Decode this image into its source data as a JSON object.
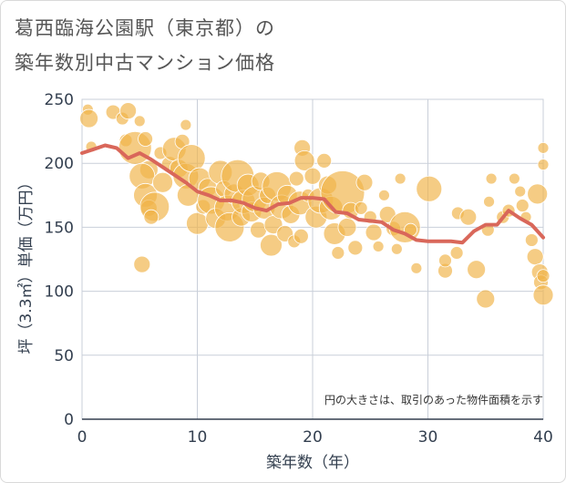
{
  "title": {
    "line1": "葛西臨海公園駅（東京都）の",
    "line2": "築年数別中古マンション価格"
  },
  "chart_data": {
    "type": "scatter",
    "xlabel": "築年数（年）",
    "ylabel": "坪（3.3㎡）単価（万円）",
    "xlim": [
      0,
      40
    ],
    "ylim": [
      0,
      250
    ],
    "x_ticks": [
      "0",
      "10",
      "20",
      "30",
      "40"
    ],
    "y_ticks": [
      "0",
      "50",
      "100",
      "150",
      "200",
      "250"
    ],
    "grid": true,
    "note": "円の大きさは、取引のあった物件面積を示す",
    "colors": {
      "bubble": "#f0b449",
      "line": "#d9675a",
      "grid": "#c9cfd9"
    },
    "bubbles": [
      {
        "x": 0.5,
        "y": 242,
        "s": 6
      },
      {
        "x": 0.6,
        "y": 235,
        "s": 10
      },
      {
        "x": 0.8,
        "y": 213,
        "s": 6
      },
      {
        "x": 2.7,
        "y": 240,
        "s": 8
      },
      {
        "x": 3.5,
        "y": 235,
        "s": 7
      },
      {
        "x": 4.0,
        "y": 241,
        "s": 9
      },
      {
        "x": 3.8,
        "y": 218,
        "s": 7
      },
      {
        "x": 4.6,
        "y": 212,
        "s": 18
      },
      {
        "x": 5.0,
        "y": 233,
        "s": 6
      },
      {
        "x": 5.5,
        "y": 219,
        "s": 8
      },
      {
        "x": 5.8,
        "y": 195,
        "s": 10
      },
      {
        "x": 5.2,
        "y": 190,
        "s": 14
      },
      {
        "x": 5.5,
        "y": 175,
        "s": 13
      },
      {
        "x": 5.8,
        "y": 165,
        "s": 9
      },
      {
        "x": 6.3,
        "y": 166,
        "s": 16
      },
      {
        "x": 6.0,
        "y": 158,
        "s": 8
      },
      {
        "x": 5.2,
        "y": 121,
        "s": 9
      },
      {
        "x": 6.8,
        "y": 208,
        "s": 7
      },
      {
        "x": 7.0,
        "y": 185,
        "s": 11
      },
      {
        "x": 7.6,
        "y": 199,
        "s": 9
      },
      {
        "x": 8.0,
        "y": 211,
        "s": 13
      },
      {
        "x": 8.4,
        "y": 196,
        "s": 10
      },
      {
        "x": 8.7,
        "y": 217,
        "s": 8
      },
      {
        "x": 9.0,
        "y": 230,
        "s": 6
      },
      {
        "x": 9.0,
        "y": 190,
        "s": 14
      },
      {
        "x": 9.2,
        "y": 175,
        "s": 12
      },
      {
        "x": 9.5,
        "y": 204,
        "s": 15
      },
      {
        "x": 10.2,
        "y": 188,
        "s": 12
      },
      {
        "x": 10.0,
        "y": 153,
        "s": 12
      },
      {
        "x": 10.5,
        "y": 166,
        "s": 8
      },
      {
        "x": 10.9,
        "y": 181,
        "s": 10
      },
      {
        "x": 11.2,
        "y": 171,
        "s": 15
      },
      {
        "x": 11.6,
        "y": 157,
        "s": 11
      },
      {
        "x": 12.0,
        "y": 193,
        "s": 13
      },
      {
        "x": 12.3,
        "y": 180,
        "s": 9
      },
      {
        "x": 12.6,
        "y": 165,
        "s": 14
      },
      {
        "x": 12.8,
        "y": 150,
        "s": 16
      },
      {
        "x": 13.2,
        "y": 176,
        "s": 11
      },
      {
        "x": 13.5,
        "y": 190,
        "s": 18
      },
      {
        "x": 13.8,
        "y": 158,
        "s": 10
      },
      {
        "x": 14.0,
        "y": 170,
        "s": 13
      },
      {
        "x": 14.4,
        "y": 183,
        "s": 12
      },
      {
        "x": 14.7,
        "y": 162,
        "s": 11
      },
      {
        "x": 15.0,
        "y": 172,
        "s": 14
      },
      {
        "x": 15.3,
        "y": 148,
        "s": 9
      },
      {
        "x": 15.5,
        "y": 186,
        "s": 10
      },
      {
        "x": 15.8,
        "y": 165,
        "s": 12
      },
      {
        "x": 16.1,
        "y": 175,
        "s": 9
      },
      {
        "x": 16.4,
        "y": 136,
        "s": 12
      },
      {
        "x": 16.6,
        "y": 152,
        "s": 10
      },
      {
        "x": 16.9,
        "y": 182,
        "s": 16
      },
      {
        "x": 17.3,
        "y": 166,
        "s": 13
      },
      {
        "x": 17.6,
        "y": 145,
        "s": 9
      },
      {
        "x": 17.8,
        "y": 175,
        "s": 11
      },
      {
        "x": 18.1,
        "y": 160,
        "s": 10
      },
      {
        "x": 18.4,
        "y": 139,
        "s": 7
      },
      {
        "x": 18.6,
        "y": 188,
        "s": 8
      },
      {
        "x": 18.9,
        "y": 169,
        "s": 13
      },
      {
        "x": 19.1,
        "y": 212,
        "s": 9
      },
      {
        "x": 19.3,
        "y": 202,
        "s": 11
      },
      {
        "x": 19.0,
        "y": 143,
        "s": 8
      },
      {
        "x": 19.6,
        "y": 175,
        "s": 7
      },
      {
        "x": 20.0,
        "y": 190,
        "s": 9
      },
      {
        "x": 20.3,
        "y": 158,
        "s": 12
      },
      {
        "x": 20.7,
        "y": 171,
        "s": 14
      },
      {
        "x": 21.0,
        "y": 202,
        "s": 8
      },
      {
        "x": 21.3,
        "y": 183,
        "s": 10
      },
      {
        "x": 21.6,
        "y": 165,
        "s": 13
      },
      {
        "x": 21.9,
        "y": 145,
        "s": 12
      },
      {
        "x": 22.2,
        "y": 130,
        "s": 7
      },
      {
        "x": 22.6,
        "y": 177,
        "s": 24
      },
      {
        "x": 23.0,
        "y": 150,
        "s": 10
      },
      {
        "x": 23.3,
        "y": 163,
        "s": 9
      },
      {
        "x": 23.7,
        "y": 134,
        "s": 8
      },
      {
        "x": 24.2,
        "y": 165,
        "s": 7
      },
      {
        "x": 24.5,
        "y": 185,
        "s": 9
      },
      {
        "x": 25.0,
        "y": 158,
        "s": 7
      },
      {
        "x": 25.3,
        "y": 146,
        "s": 9
      },
      {
        "x": 25.7,
        "y": 135,
        "s": 6
      },
      {
        "x": 26.2,
        "y": 175,
        "s": 6
      },
      {
        "x": 26.5,
        "y": 160,
        "s": 9
      },
      {
        "x": 27.0,
        "y": 149,
        "s": 8
      },
      {
        "x": 27.3,
        "y": 133,
        "s": 6
      },
      {
        "x": 27.6,
        "y": 188,
        "s": 6
      },
      {
        "x": 28.0,
        "y": 150,
        "s": 17
      },
      {
        "x": 28.5,
        "y": 148,
        "s": 7
      },
      {
        "x": 29.0,
        "y": 118,
        "s": 6
      },
      {
        "x": 30.1,
        "y": 180,
        "s": 14
      },
      {
        "x": 31.5,
        "y": 116,
        "s": 8
      },
      {
        "x": 31.5,
        "y": 124,
        "s": 7
      },
      {
        "x": 32.5,
        "y": 130,
        "s": 7
      },
      {
        "x": 32.6,
        "y": 161,
        "s": 7
      },
      {
        "x": 33.5,
        "y": 158,
        "s": 9
      },
      {
        "x": 34.2,
        "y": 117,
        "s": 10
      },
      {
        "x": 35.0,
        "y": 94,
        "s": 10
      },
      {
        "x": 35.2,
        "y": 148,
        "s": 7
      },
      {
        "x": 35.3,
        "y": 170,
        "s": 6
      },
      {
        "x": 35.5,
        "y": 188,
        "s": 6
      },
      {
        "x": 36.5,
        "y": 158,
        "s": 7
      },
      {
        "x": 37.0,
        "y": 163,
        "s": 7
      },
      {
        "x": 37.5,
        "y": 188,
        "s": 6
      },
      {
        "x": 38.0,
        "y": 178,
        "s": 6
      },
      {
        "x": 38.2,
        "y": 167,
        "s": 7
      },
      {
        "x": 38.5,
        "y": 158,
        "s": 6
      },
      {
        "x": 39.0,
        "y": 140,
        "s": 7
      },
      {
        "x": 39.3,
        "y": 127,
        "s": 9
      },
      {
        "x": 39.5,
        "y": 176,
        "s": 11
      },
      {
        "x": 39.7,
        "y": 115,
        "s": 9
      },
      {
        "x": 39.8,
        "y": 107,
        "s": 8
      },
      {
        "x": 40.0,
        "y": 97,
        "s": 11
      },
      {
        "x": 40.0,
        "y": 199,
        "s": 6
      },
      {
        "x": 40.0,
        "y": 212,
        "s": 6
      },
      {
        "x": 40.0,
        "y": 112,
        "s": 7
      }
    ],
    "line": [
      {
        "x": 0,
        "y": 208
      },
      {
        "x": 1,
        "y": 211
      },
      {
        "x": 2,
        "y": 214
      },
      {
        "x": 3,
        "y": 212
      },
      {
        "x": 4,
        "y": 204
      },
      {
        "x": 5,
        "y": 208
      },
      {
        "x": 6,
        "y": 203
      },
      {
        "x": 7,
        "y": 197
      },
      {
        "x": 8,
        "y": 191
      },
      {
        "x": 9,
        "y": 185
      },
      {
        "x": 10,
        "y": 178
      },
      {
        "x": 11,
        "y": 175
      },
      {
        "x": 12,
        "y": 171
      },
      {
        "x": 13,
        "y": 171
      },
      {
        "x": 14,
        "y": 169
      },
      {
        "x": 15,
        "y": 165
      },
      {
        "x": 16,
        "y": 163
      },
      {
        "x": 17,
        "y": 168
      },
      {
        "x": 18,
        "y": 169
      },
      {
        "x": 19,
        "y": 173
      },
      {
        "x": 20,
        "y": 173
      },
      {
        "x": 21,
        "y": 172
      },
      {
        "x": 22,
        "y": 162
      },
      {
        "x": 23,
        "y": 161
      },
      {
        "x": 24,
        "y": 156
      },
      {
        "x": 25,
        "y": 155
      },
      {
        "x": 26,
        "y": 154
      },
      {
        "x": 27,
        "y": 148
      },
      {
        "x": 28,
        "y": 145
      },
      {
        "x": 29,
        "y": 140
      },
      {
        "x": 30,
        "y": 139
      },
      {
        "x": 31,
        "y": 139
      },
      {
        "x": 32,
        "y": 139
      },
      {
        "x": 33,
        "y": 138
      },
      {
        "x": 34,
        "y": 147
      },
      {
        "x": 35,
        "y": 152
      },
      {
        "x": 36,
        "y": 152
      },
      {
        "x": 37,
        "y": 163
      },
      {
        "x": 38,
        "y": 157
      },
      {
        "x": 39,
        "y": 152
      },
      {
        "x": 40,
        "y": 142
      }
    ]
  }
}
